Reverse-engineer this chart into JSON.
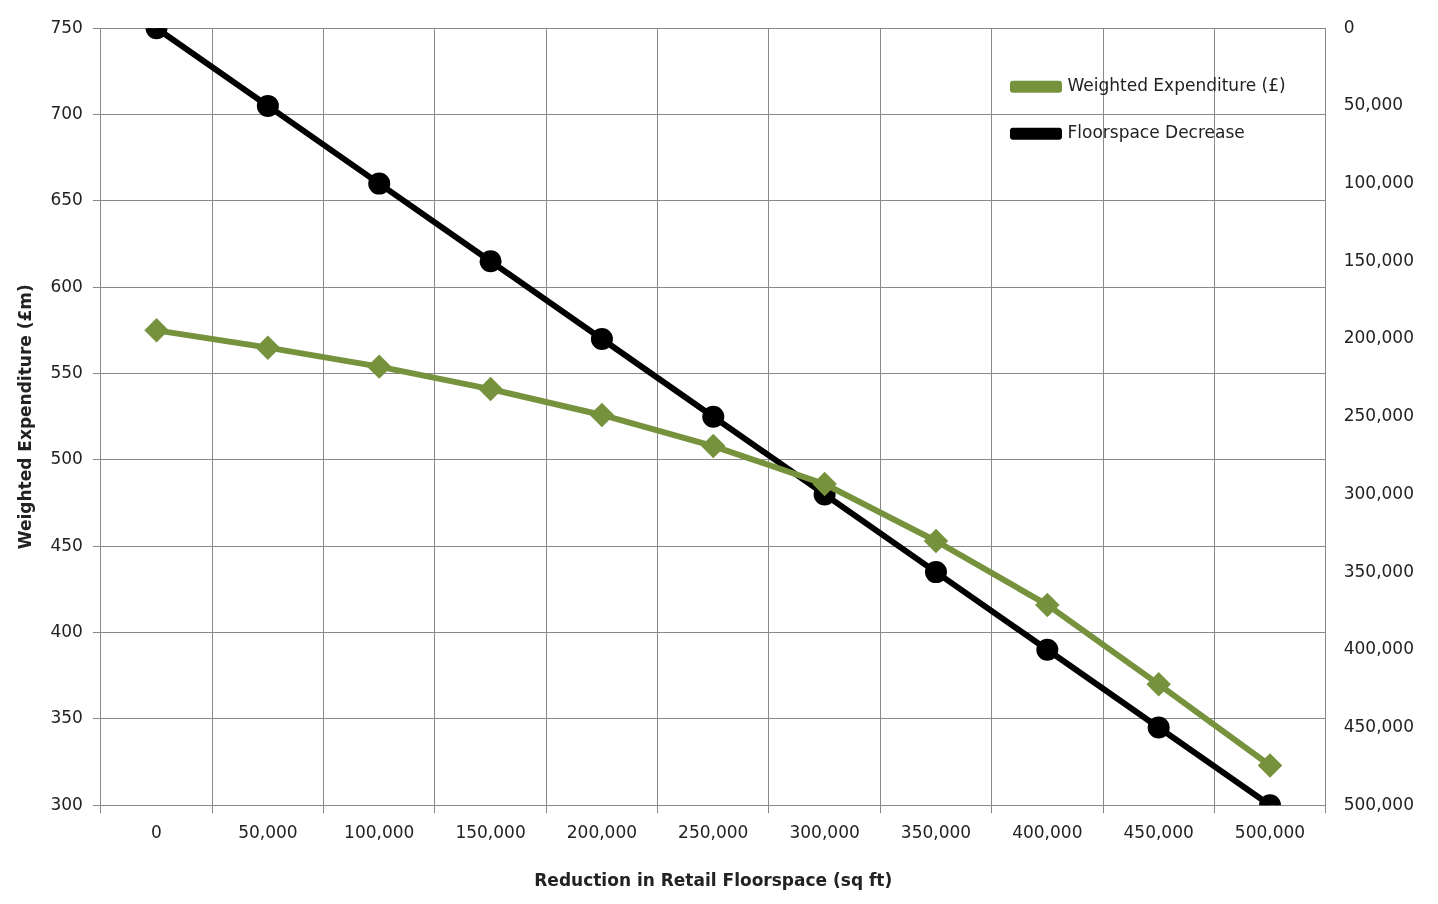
{
  "chart_data": {
    "type": "line",
    "xlabel": "Reduction in Retail Floorspace (sq ft)",
    "ylabel": "Weighted Expenditure (£m)",
    "categories": [
      "0",
      "50,000",
      "100,000",
      "150,000",
      "200,000",
      "250,000",
      "300,000",
      "350,000",
      "400,000",
      "450,000",
      "500,000"
    ],
    "series": [
      {
        "name": "Weighted Expenditure (£)",
        "color": "#76923c",
        "marker": "diamond",
        "values": [
          575,
          565,
          554,
          541,
          526,
          508,
          486,
          453,
          416,
          370,
          323
        ]
      },
      {
        "name": "Floorspace Decrease",
        "color": "#000000",
        "marker": "circle",
        "axis": "y2",
        "values": [
          0,
          50000,
          100000,
          150000,
          200000,
          250000,
          300000,
          350000,
          400000,
          450000,
          500000
        ]
      }
    ],
    "ylim": [
      300,
      750
    ],
    "yticks": [
      300,
      350,
      400,
      450,
      500,
      550,
      600,
      650,
      700,
      750
    ],
    "y2lim": [
      500000,
      0
    ],
    "y2ticks": [
      {
        "value": 0,
        "label": "0"
      },
      {
        "value": 50000,
        "label": "50,000"
      },
      {
        "value": 100000,
        "label": "100,000"
      },
      {
        "value": 150000,
        "label": "150,000"
      },
      {
        "value": 200000,
        "label": "200,000"
      },
      {
        "value": 250000,
        "label": "250,000"
      },
      {
        "value": 300000,
        "label": "300,000"
      },
      {
        "value": 350000,
        "label": "350,000"
      },
      {
        "value": 400000,
        "label": "400,000"
      },
      {
        "value": 450000,
        "label": "450,000"
      },
      {
        "value": 500000,
        "label": "500,000"
      }
    ],
    "grid": true,
    "legend": "top right",
    "line_style": "solid"
  }
}
